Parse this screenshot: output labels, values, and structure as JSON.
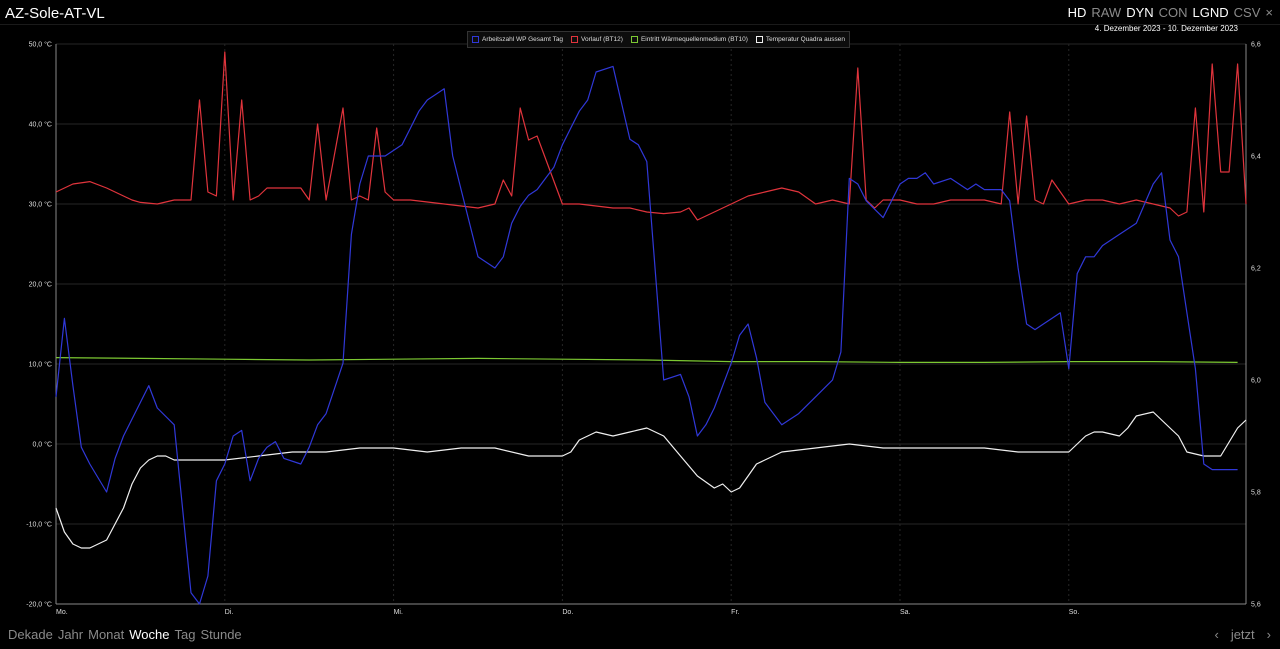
{
  "app_title": "AZ-Sole-AT-VL",
  "modes": [
    {
      "label": "HD",
      "active": true
    },
    {
      "label": "RAW",
      "active": false
    },
    {
      "label": "DYN",
      "active": true
    },
    {
      "label": "CON",
      "active": false
    },
    {
      "label": "LGND",
      "active": true
    },
    {
      "label": "CSV",
      "active": false
    }
  ],
  "close_label": "×",
  "date_range": "4. Dezember 2023 - 10. Dezember 2023",
  "bottom_nav": [
    {
      "label": "Dekade",
      "active": false
    },
    {
      "label": "Jahr",
      "active": false
    },
    {
      "label": "Monat",
      "active": false
    },
    {
      "label": "Woche",
      "active": true
    },
    {
      "label": "Tag",
      "active": false
    },
    {
      "label": "Stunde",
      "active": false
    }
  ],
  "pager": {
    "prev": "‹",
    "now": "jetzt",
    "next": "›"
  },
  "colors": {
    "blue": "#3038d8",
    "red": "#e0343c",
    "green": "#7cc832",
    "white": "#f0f0f0",
    "grid": "#262626"
  },
  "chart_data": {
    "type": "line",
    "x_labels": [
      "Mo.",
      "Di.",
      "Mi.",
      "Do.",
      "Fr.",
      "Sa.",
      "So."
    ],
    "x_range": [
      0,
      7.05
    ],
    "y_left": {
      "min": -20,
      "max": 50,
      "ticks": [
        "-20,0 °C",
        "-10,0 °C",
        "0,0 °C",
        "10,0 °C",
        "20,0 °C",
        "30,0 °C",
        "40,0 °C",
        "50,0 °C"
      ]
    },
    "y_right": {
      "min": 5.6,
      "max": 6.6,
      "ticks": [
        "5,6",
        "5,8",
        "6,0",
        "6,2",
        "6,4",
        "6,6"
      ]
    },
    "grid": true,
    "legend_position": "top-center",
    "series": [
      {
        "name": "Arbeitszahl WP Gesamt Tag",
        "color": "#3038d8",
        "axis": "right",
        "x": [
          0,
          0.05,
          0.1,
          0.15,
          0.2,
          0.3,
          0.35,
          0.4,
          0.5,
          0.55,
          0.6,
          0.7,
          0.8,
          0.85,
          0.9,
          0.95,
          1.0,
          1.05,
          1.1,
          1.15,
          1.2,
          1.25,
          1.3,
          1.35,
          1.45,
          1.5,
          1.55,
          1.6,
          1.7,
          1.75,
          1.8,
          1.85,
          1.9,
          1.95,
          2.0,
          2.05,
          2.1,
          2.15,
          2.2,
          2.25,
          2.3,
          2.35,
          2.4,
          2.5,
          2.6,
          2.65,
          2.7,
          2.75,
          2.8,
          2.85,
          2.9,
          2.95,
          3.0,
          3.05,
          3.1,
          3.15,
          3.2,
          3.3,
          3.4,
          3.45,
          3.5,
          3.6,
          3.7,
          3.75,
          3.8,
          3.85,
          3.9,
          4.0,
          4.02,
          4.05,
          4.1,
          4.15,
          4.2,
          4.3,
          4.4,
          4.5,
          4.6,
          4.65,
          4.7,
          4.75,
          4.8,
          4.9,
          5.0,
          5.05,
          5.1,
          5.15,
          5.2,
          5.3,
          5.4,
          5.45,
          5.5,
          5.6,
          5.65,
          5.7,
          5.75,
          5.8,
          5.85,
          5.9,
          5.95,
          6.0,
          6.05,
          6.1,
          6.15,
          6.2,
          6.3,
          6.4,
          6.5,
          6.55,
          6.6,
          6.65,
          6.7,
          6.75,
          6.8,
          6.85,
          6.9,
          6.95,
          7.0
        ],
        "y": [
          5.97,
          6.11,
          5.99,
          5.88,
          5.85,
          5.8,
          5.86,
          5.9,
          5.96,
          5.99,
          5.95,
          5.92,
          5.62,
          5.6,
          5.65,
          5.82,
          5.85,
          5.9,
          5.91,
          5.82,
          5.86,
          5.88,
          5.89,
          5.86,
          5.85,
          5.88,
          5.92,
          5.94,
          6.03,
          6.26,
          6.35,
          6.4,
          6.4,
          6.4,
          6.41,
          6.42,
          6.45,
          6.48,
          6.5,
          6.51,
          6.52,
          6.4,
          6.34,
          6.22,
          6.2,
          6.22,
          6.28,
          6.31,
          6.33,
          6.34,
          6.36,
          6.38,
          6.42,
          6.45,
          6.48,
          6.5,
          6.55,
          6.56,
          6.43,
          6.42,
          6.39,
          6.0,
          6.01,
          5.97,
          5.9,
          5.92,
          5.95,
          6.03,
          6.05,
          6.08,
          6.1,
          6.04,
          5.96,
          5.92,
          5.94,
          5.97,
          6.0,
          6.05,
          6.36,
          6.35,
          6.32,
          6.29,
          6.35,
          6.36,
          6.36,
          6.37,
          6.35,
          6.36,
          6.34,
          6.35,
          6.34,
          6.34,
          6.32,
          6.2,
          6.1,
          6.09,
          6.1,
          6.11,
          6.12,
          6.02,
          6.19,
          6.22,
          6.22,
          6.24,
          6.26,
          6.28,
          6.35,
          6.37,
          6.25,
          6.22,
          6.12,
          6.02,
          5.85,
          5.84,
          5.84,
          5.84,
          5.84
        ]
      },
      {
        "name": "Vorlauf (BT12)",
        "color": "#e0343c",
        "axis": "left",
        "x": [
          0,
          0.1,
          0.2,
          0.3,
          0.45,
          0.5,
          0.6,
          0.7,
          0.8,
          0.85,
          0.9,
          0.95,
          1.0,
          1.05,
          1.1,
          1.15,
          1.2,
          1.25,
          1.3,
          1.35,
          1.45,
          1.5,
          1.55,
          1.6,
          1.7,
          1.75,
          1.8,
          1.85,
          1.9,
          1.95,
          2.0,
          2.1,
          2.3,
          2.5,
          2.6,
          2.65,
          2.7,
          2.75,
          2.8,
          2.85,
          3.0,
          3.1,
          3.3,
          3.4,
          3.5,
          3.6,
          3.7,
          3.75,
          3.8,
          3.9,
          4.0,
          4.1,
          4.2,
          4.3,
          4.4,
          4.5,
          4.6,
          4.7,
          4.75,
          4.8,
          4.85,
          4.9,
          5.0,
          5.1,
          5.2,
          5.3,
          5.4,
          5.5,
          5.6,
          5.65,
          5.7,
          5.75,
          5.8,
          5.85,
          5.9,
          6.0,
          6.1,
          6.2,
          6.3,
          6.4,
          6.5,
          6.6,
          6.65,
          6.7,
          6.75,
          6.8,
          6.85,
          6.9,
          6.95,
          7.0,
          7.05
        ],
        "y": [
          31.5,
          32.5,
          32.8,
          32.0,
          30.5,
          30.2,
          30.0,
          30.5,
          30.5,
          43.0,
          31.5,
          31.0,
          49.0,
          30.5,
          43.0,
          30.5,
          31.0,
          32.0,
          32.0,
          32.0,
          32.0,
          30.5,
          40.0,
          30.5,
          42.0,
          30.5,
          31.0,
          30.5,
          39.5,
          31.5,
          30.5,
          30.5,
          30.0,
          29.5,
          30.0,
          33.0,
          31.0,
          42.0,
          38.0,
          38.5,
          30.0,
          30.0,
          29.5,
          29.5,
          29.0,
          28.8,
          29.0,
          29.5,
          28.0,
          29.0,
          30.0,
          31.0,
          31.5,
          32.0,
          31.5,
          30.0,
          30.5,
          30.0,
          47.0,
          30.5,
          29.5,
          30.5,
          30.5,
          30.0,
          30.0,
          30.5,
          30.5,
          30.5,
          30.0,
          41.5,
          30.0,
          41.0,
          30.5,
          30.0,
          33.0,
          30.0,
          30.5,
          30.5,
          30.0,
          30.5,
          30.0,
          29.5,
          28.5,
          29.0,
          42.0,
          29.0,
          47.5,
          34.0,
          34.0,
          47.5,
          30.0
        ]
      },
      {
        "name": "Eintritt Wärmequellenmedium (BT10)",
        "color": "#7cc832",
        "axis": "left",
        "x": [
          0,
          0.5,
          1.0,
          1.5,
          2.0,
          2.5,
          3.0,
          3.5,
          4.0,
          4.5,
          5.0,
          5.5,
          6.0,
          6.5,
          7.0
        ],
        "y": [
          10.8,
          10.7,
          10.6,
          10.5,
          10.6,
          10.7,
          10.6,
          10.5,
          10.3,
          10.3,
          10.2,
          10.2,
          10.3,
          10.3,
          10.2
        ]
      },
      {
        "name": "Temperatur Quadra aussen",
        "color": "#f0f0f0",
        "axis": "left",
        "x": [
          0,
          0.05,
          0.1,
          0.15,
          0.2,
          0.3,
          0.4,
          0.45,
          0.5,
          0.55,
          0.6,
          0.65,
          0.7,
          0.8,
          1.0,
          1.2,
          1.4,
          1.6,
          1.8,
          2.0,
          2.2,
          2.4,
          2.6,
          2.8,
          2.9,
          3.0,
          3.05,
          3.1,
          3.2,
          3.3,
          3.4,
          3.5,
          3.6,
          3.7,
          3.8,
          3.9,
          3.95,
          4.0,
          4.05,
          4.1,
          4.15,
          4.2,
          4.3,
          4.5,
          4.7,
          4.9,
          5.1,
          5.3,
          5.5,
          5.7,
          5.9,
          6.0,
          6.1,
          6.15,
          6.2,
          6.3,
          6.35,
          6.4,
          6.5,
          6.6,
          6.65,
          6.7,
          6.8,
          6.9,
          7.0,
          7.05
        ],
        "y": [
          -8.0,
          -11.0,
          -12.5,
          -13.0,
          -13.0,
          -12.0,
          -8.0,
          -5.0,
          -3.0,
          -2.0,
          -1.5,
          -1.5,
          -2.0,
          -2.0,
          -2.0,
          -1.5,
          -1.0,
          -1.0,
          -0.5,
          -0.5,
          -1.0,
          -0.5,
          -0.5,
          -1.5,
          -1.5,
          -1.5,
          -1.0,
          0.5,
          1.5,
          1.0,
          1.5,
          2.0,
          1.0,
          -1.5,
          -4.0,
          -5.5,
          -5.0,
          -6.0,
          -5.5,
          -4.0,
          -2.5,
          -2.0,
          -1.0,
          -0.5,
          0.0,
          -0.5,
          -0.5,
          -0.5,
          -0.5,
          -1.0,
          -1.0,
          -1.0,
          1.0,
          1.5,
          1.5,
          1.0,
          2.0,
          3.5,
          4.0,
          2.0,
          1.0,
          -1.0,
          -1.5,
          -1.5,
          2.0,
          3.0
        ]
      }
    ]
  }
}
